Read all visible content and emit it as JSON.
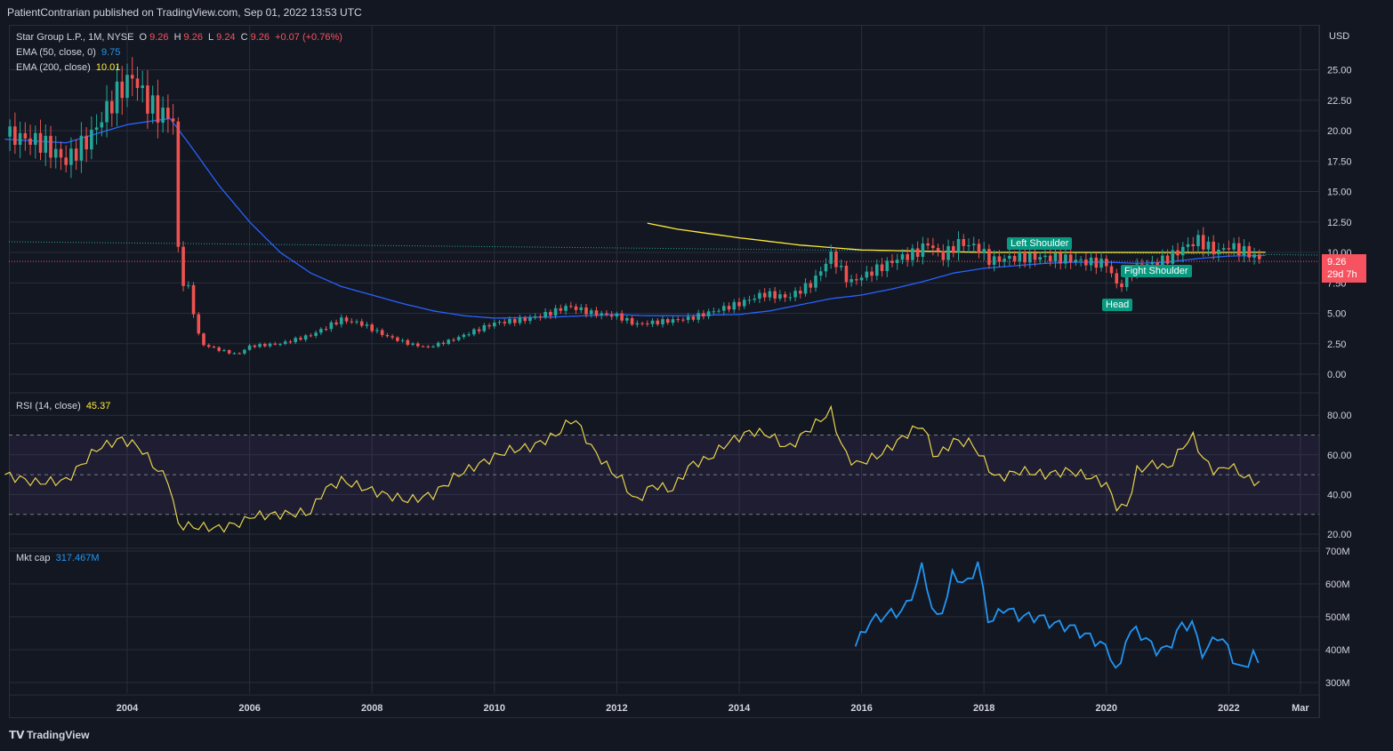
{
  "header": {
    "publisher": "PatientContrarian published on TradingView.com, Sep 01, 2022 13:53 UTC"
  },
  "legend": {
    "symbol": "Star Group L.P., 1M, NYSE",
    "o_label": "O",
    "o_value": "9.26",
    "h_label": "H",
    "h_value": "9.26",
    "l_label": "L",
    "l_value": "9.24",
    "c_label": "C",
    "c_value": "9.26",
    "change": "+0.07 (+0.76%)",
    "ema50_label": "EMA (50, close, 0)",
    "ema50_value": "9.75",
    "ema200_label": "EMA (200, close)",
    "ema200_value": "10.01",
    "rsi_label": "RSI (14, close)",
    "rsi_value": "45.37",
    "mcap_label": "Mkt cap",
    "mcap_value": "317.467M"
  },
  "price_tag": {
    "price": "9.26",
    "countdown": "29d 7h"
  },
  "annotations": {
    "left_shoulder": "Left Shoulder",
    "right_shoulder": "Fight Shoulder",
    "head": "Head"
  },
  "footer": {
    "brand": "TradingView"
  },
  "colors": {
    "bg": "#131722",
    "up": "#26a69a",
    "down": "#ef5350",
    "ema50": "#2962ff",
    "ema200": "#ffeb3b",
    "rsi": "#e8d44d",
    "mcap": "#2196f3",
    "grid": "#2a2e39"
  },
  "chart_data": [
    {
      "type": "candlestick",
      "title": "Star Group L.P., 1M, NYSE",
      "currency": "USD",
      "ylim": [
        0,
        27
      ],
      "y_ticks": [
        "0.00",
        "2.50",
        "5.00",
        "7.50",
        "10.00",
        "12.50",
        "15.00",
        "17.50",
        "20.00",
        "22.50",
        "25.00"
      ],
      "x_ticks": [
        "2004",
        "2006",
        "2008",
        "2010",
        "2012",
        "2014",
        "2016",
        "2018",
        "2020",
        "2022",
        "Mar"
      ],
      "close_anchors": [
        [
          2002.2,
          19.5
        ],
        [
          2002.6,
          19.0
        ],
        [
          2003.0,
          17.5
        ],
        [
          2003.4,
          19.5
        ],
        [
          2003.7,
          22.0
        ],
        [
          2003.9,
          23.5
        ],
        [
          2004.1,
          24.5
        ],
        [
          2004.3,
          22.5
        ],
        [
          2004.5,
          21.5
        ],
        [
          2004.75,
          21.0
        ],
        [
          2004.85,
          8.0
        ],
        [
          2005.0,
          7.0
        ],
        [
          2005.2,
          2.5
        ],
        [
          2005.5,
          2.0
        ],
        [
          2005.8,
          1.6
        ],
        [
          2006.0,
          2.3
        ],
        [
          2006.5,
          2.5
        ],
        [
          2007.0,
          3.2
        ],
        [
          2007.5,
          4.5
        ],
        [
          2007.8,
          4.2
        ],
        [
          2008.2,
          3.2
        ],
        [
          2008.6,
          2.5
        ],
        [
          2008.9,
          2.2
        ],
        [
          2009.3,
          2.8
        ],
        [
          2009.7,
          3.6
        ],
        [
          2010.0,
          4.2
        ],
        [
          2010.5,
          4.5
        ],
        [
          2010.9,
          5.0
        ],
        [
          2011.2,
          5.6
        ],
        [
          2011.6,
          5.0
        ],
        [
          2012.0,
          4.8
        ],
        [
          2012.3,
          4.1
        ],
        [
          2012.7,
          4.3
        ],
        [
          2013.2,
          4.6
        ],
        [
          2013.6,
          5.2
        ],
        [
          2014.0,
          5.8
        ],
        [
          2014.4,
          6.6
        ],
        [
          2014.8,
          6.3
        ],
        [
          2015.2,
          7.5
        ],
        [
          2015.5,
          9.8
        ],
        [
          2015.8,
          7.5
        ],
        [
          2016.2,
          8.5
        ],
        [
          2016.6,
          9.5
        ],
        [
          2016.9,
          10.0
        ],
        [
          2017.1,
          10.8
        ],
        [
          2017.3,
          9.6
        ],
        [
          2017.6,
          10.8
        ],
        [
          2017.9,
          10.4
        ],
        [
          2018.1,
          9.3
        ],
        [
          2018.5,
          9.6
        ],
        [
          2018.9,
          9.6
        ],
        [
          2019.3,
          9.5
        ],
        [
          2019.7,
          9.2
        ],
        [
          2020.0,
          9.1
        ],
        [
          2020.2,
          7.0
        ],
        [
          2020.4,
          8.5
        ],
        [
          2020.7,
          9.0
        ],
        [
          2021.0,
          9.5
        ],
        [
          2021.3,
          10.5
        ],
        [
          2021.5,
          11.0
        ],
        [
          2021.8,
          10.0
        ],
        [
          2022.0,
          10.5
        ],
        [
          2022.3,
          10.0
        ],
        [
          2022.55,
          9.26
        ]
      ],
      "ema50_anchors": [
        [
          2002.0,
          19.3
        ],
        [
          2003.0,
          19.0
        ],
        [
          2004.0,
          20.5
        ],
        [
          2004.7,
          21.0
        ],
        [
          2005.0,
          19.0
        ],
        [
          2005.5,
          15.5
        ],
        [
          2006.0,
          12.5
        ],
        [
          2006.5,
          10.0
        ],
        [
          2007.0,
          8.3
        ],
        [
          2007.5,
          7.2
        ],
        [
          2008.0,
          6.5
        ],
        [
          2008.5,
          5.8
        ],
        [
          2009.0,
          5.2
        ],
        [
          2009.5,
          4.8
        ],
        [
          2010.0,
          4.6
        ],
        [
          2011.0,
          4.7
        ],
        [
          2011.5,
          4.8
        ],
        [
          2012.0,
          4.9
        ],
        [
          2012.5,
          4.8
        ],
        [
          2013.0,
          4.8
        ],
        [
          2014.0,
          4.9
        ],
        [
          2014.5,
          5.2
        ],
        [
          2015.0,
          5.7
        ],
        [
          2015.5,
          6.2
        ],
        [
          2016.0,
          6.5
        ],
        [
          2016.5,
          7.0
        ],
        [
          2017.0,
          7.6
        ],
        [
          2017.5,
          8.3
        ],
        [
          2018.0,
          8.7
        ],
        [
          2018.5,
          8.9
        ],
        [
          2019.0,
          9.1
        ],
        [
          2019.5,
          9.2
        ],
        [
          2020.0,
          9.2
        ],
        [
          2020.5,
          9.1
        ],
        [
          2021.0,
          9.2
        ],
        [
          2021.5,
          9.5
        ],
        [
          2022.0,
          9.7
        ],
        [
          2022.6,
          9.75
        ]
      ],
      "ema200_anchors": [
        [
          2012.5,
          12.4
        ],
        [
          2013.0,
          11.9
        ],
        [
          2014.0,
          11.2
        ],
        [
          2015.0,
          10.6
        ],
        [
          2016.0,
          10.2
        ],
        [
          2017.0,
          10.1
        ],
        [
          2018.0,
          10.0
        ],
        [
          2019.0,
          10.0
        ],
        [
          2020.0,
          10.0
        ],
        [
          2021.0,
          10.0
        ],
        [
          2022.0,
          10.0
        ],
        [
          2022.6,
          10.01
        ]
      ],
      "last_price": 9.26
    },
    {
      "type": "line",
      "name": "RSI (14, close)",
      "ylim": [
        15,
        85
      ],
      "y_ticks": [
        "20.00",
        "40.00",
        "60.00",
        "80.00"
      ],
      "bands": [
        30,
        50,
        70
      ],
      "anchors": [
        [
          2002.0,
          50
        ],
        [
          2002.5,
          46
        ],
        [
          2003.0,
          47
        ],
        [
          2003.5,
          63
        ],
        [
          2003.9,
          68
        ],
        [
          2004.2,
          64
        ],
        [
          2004.5,
          52
        ],
        [
          2004.7,
          47
        ],
        [
          2004.8,
          25
        ],
        [
          2005.0,
          24
        ],
        [
          2005.5,
          23
        ],
        [
          2005.9,
          26
        ],
        [
          2006.0,
          29
        ],
        [
          2006.5,
          30
        ],
        [
          2007.0,
          31
        ],
        [
          2007.2,
          42
        ],
        [
          2007.5,
          47
        ],
        [
          2007.8,
          44
        ],
        [
          2008.2,
          40
        ],
        [
          2008.6,
          37
        ],
        [
          2009.0,
          40
        ],
        [
          2009.4,
          50
        ],
        [
          2009.8,
          56
        ],
        [
          2010.2,
          62
        ],
        [
          2010.6,
          64
        ],
        [
          2011.0,
          70
        ],
        [
          2011.3,
          79
        ],
        [
          2011.6,
          63
        ],
        [
          2011.9,
          52
        ],
        [
          2012.1,
          47
        ],
        [
          2012.3,
          36
        ],
        [
          2012.6,
          45
        ],
        [
          2012.9,
          42
        ],
        [
          2013.2,
          55
        ],
        [
          2013.5,
          58
        ],
        [
          2013.8,
          66
        ],
        [
          2014.2,
          72
        ],
        [
          2014.5,
          70
        ],
        [
          2014.8,
          63
        ],
        [
          2015.1,
          72
        ],
        [
          2015.5,
          82
        ],
        [
          2015.7,
          62
        ],
        [
          2015.9,
          55
        ],
        [
          2016.3,
          60
        ],
        [
          2016.6,
          67
        ],
        [
          2016.8,
          72
        ],
        [
          2017.0,
          75
        ],
        [
          2017.2,
          58
        ],
        [
          2017.5,
          67
        ],
        [
          2017.8,
          66
        ],
        [
          2018.0,
          57
        ],
        [
          2018.2,
          48
        ],
        [
          2018.6,
          52
        ],
        [
          2019.0,
          50
        ],
        [
          2019.4,
          52
        ],
        [
          2019.8,
          48
        ],
        [
          2020.0,
          45
        ],
        [
          2020.2,
          32
        ],
        [
          2020.35,
          35
        ],
        [
          2020.5,
          52
        ],
        [
          2020.8,
          56
        ],
        [
          2021.0,
          53
        ],
        [
          2021.2,
          62
        ],
        [
          2021.4,
          70
        ],
        [
          2021.6,
          57
        ],
        [
          2021.8,
          51
        ],
        [
          2022.0,
          55
        ],
        [
          2022.3,
          48
        ],
        [
          2022.55,
          45.37
        ]
      ]
    },
    {
      "type": "line",
      "name": "Mkt cap",
      "ylim": [
        270,
        700
      ],
      "y_ticks": [
        "300M",
        "400M",
        "500M",
        "600M",
        "700M"
      ],
      "anchors": [
        [
          2015.9,
          410
        ],
        [
          2016.1,
          480
        ],
        [
          2016.3,
          500
        ],
        [
          2016.5,
          510
        ],
        [
          2016.7,
          520
        ],
        [
          2016.9,
          600
        ],
        [
          2017.0,
          660
        ],
        [
          2017.2,
          480
        ],
        [
          2017.4,
          560
        ],
        [
          2017.5,
          640
        ],
        [
          2017.7,
          590
        ],
        [
          2017.9,
          665
        ],
        [
          2018.0,
          560
        ],
        [
          2018.1,
          470
        ],
        [
          2018.3,
          530
        ],
        [
          2018.6,
          500
        ],
        [
          2018.9,
          500
        ],
        [
          2019.1,
          480
        ],
        [
          2019.4,
          470
        ],
        [
          2019.7,
          440
        ],
        [
          2019.9,
          420
        ],
        [
          2020.1,
          380
        ],
        [
          2020.2,
          300
        ],
        [
          2020.3,
          440
        ],
        [
          2020.5,
          460
        ],
        [
          2020.8,
          400
        ],
        [
          2021.0,
          400
        ],
        [
          2021.2,
          470
        ],
        [
          2021.4,
          480
        ],
        [
          2021.5,
          420
        ],
        [
          2021.6,
          380
        ],
        [
          2021.8,
          450
        ],
        [
          2022.0,
          400
        ],
        [
          2022.2,
          330
        ],
        [
          2022.4,
          390
        ],
        [
          2022.55,
          317
        ]
      ]
    }
  ]
}
